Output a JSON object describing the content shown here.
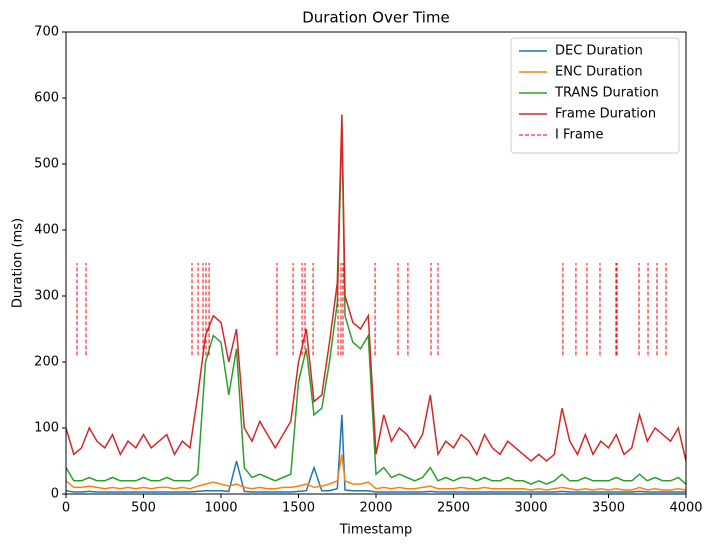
{
  "chart_data": {
    "type": "line",
    "title": "Duration Over Time",
    "x_label": "Timestamp",
    "y_label": "Duration (ms)",
    "xlim": [
      0,
      4000
    ],
    "xticks": [
      0,
      500,
      1000,
      1500,
      2000,
      2500,
      3000,
      3500,
      4000
    ],
    "ylim": [
      0,
      700
    ],
    "yticks": [
      0,
      100,
      200,
      300,
      400,
      500,
      600,
      700
    ],
    "grid": false,
    "legend": "upper right",
    "x": [
      0,
      50,
      100,
      150,
      200,
      250,
      300,
      350,
      400,
      450,
      500,
      550,
      600,
      650,
      700,
      750,
      800,
      850,
      900,
      950,
      1000,
      1050,
      1100,
      1150,
      1200,
      1250,
      1300,
      1350,
      1400,
      1450,
      1500,
      1550,
      1600,
      1650,
      1700,
      1750,
      1780,
      1800,
      1850,
      1900,
      1950,
      2000,
      2050,
      2100,
      2150,
      2200,
      2250,
      2300,
      2350,
      2400,
      2450,
      2500,
      2550,
      2600,
      2650,
      2700,
      2750,
      2800,
      2850,
      2900,
      2950,
      3000,
      3050,
      3100,
      3150,
      3200,
      3250,
      3300,
      3350,
      3400,
      3450,
      3500,
      3550,
      3600,
      3650,
      3700,
      3750,
      3800,
      3850,
      3900,
      3950,
      4000
    ],
    "series": [
      {
        "name": "DEC Duration",
        "color": "#1f77b4",
        "values": [
          5,
          3,
          3,
          4,
          3,
          3,
          3,
          3,
          3,
          3,
          3,
          3,
          3,
          3,
          3,
          3,
          3,
          4,
          5,
          5,
          5,
          4,
          50,
          4,
          3,
          3,
          3,
          3,
          3,
          3,
          4,
          5,
          40,
          5,
          5,
          8,
          120,
          6,
          5,
          5,
          5,
          3,
          3,
          3,
          3,
          3,
          3,
          3,
          4,
          3,
          3,
          3,
          3,
          3,
          3,
          3,
          3,
          3,
          3,
          3,
          3,
          3,
          3,
          3,
          3,
          4,
          3,
          3,
          3,
          3,
          3,
          3,
          3,
          3,
          3,
          4,
          3,
          3,
          3,
          3,
          3,
          3
        ]
      },
      {
        "name": "ENC Duration",
        "color": "#ff7f0e",
        "values": [
          20,
          10,
          10,
          12,
          10,
          8,
          10,
          8,
          10,
          8,
          10,
          8,
          10,
          10,
          8,
          10,
          8,
          12,
          15,
          18,
          15,
          12,
          15,
          10,
          8,
          10,
          8,
          8,
          10,
          10,
          12,
          15,
          10,
          12,
          15,
          20,
          60,
          20,
          15,
          15,
          18,
          8,
          10,
          8,
          10,
          8,
          8,
          10,
          12,
          8,
          8,
          8,
          10,
          8,
          8,
          10,
          8,
          8,
          8,
          8,
          8,
          6,
          8,
          6,
          8,
          10,
          8,
          6,
          8,
          6,
          8,
          6,
          8,
          6,
          6,
          10,
          6,
          8,
          6,
          6,
          8,
          6
        ]
      },
      {
        "name": "TRANS Duration",
        "color": "#2ca02c",
        "values": [
          40,
          20,
          20,
          25,
          20,
          20,
          25,
          20,
          20,
          20,
          25,
          20,
          20,
          25,
          20,
          20,
          20,
          30,
          200,
          240,
          230,
          150,
          220,
          40,
          25,
          30,
          25,
          20,
          25,
          30,
          170,
          220,
          120,
          130,
          200,
          290,
          560,
          270,
          230,
          220,
          240,
          30,
          40,
          25,
          30,
          25,
          20,
          25,
          40,
          20,
          25,
          20,
          25,
          25,
          20,
          25,
          20,
          20,
          25,
          20,
          20,
          15,
          20,
          15,
          20,
          30,
          20,
          20,
          25,
          20,
          20,
          20,
          25,
          20,
          20,
          30,
          20,
          25,
          20,
          20,
          25,
          15
        ]
      },
      {
        "name": "Frame Duration",
        "color": "#d62728",
        "values": [
          100,
          60,
          70,
          100,
          80,
          70,
          90,
          60,
          80,
          70,
          90,
          70,
          80,
          90,
          60,
          80,
          70,
          150,
          240,
          270,
          260,
          200,
          250,
          100,
          80,
          110,
          90,
          70,
          90,
          110,
          200,
          250,
          140,
          150,
          230,
          320,
          575,
          300,
          260,
          250,
          270,
          60,
          120,
          80,
          100,
          90,
          70,
          90,
          150,
          60,
          80,
          70,
          90,
          80,
          60,
          90,
          70,
          60,
          80,
          70,
          60,
          50,
          60,
          50,
          60,
          130,
          80,
          60,
          90,
          60,
          80,
          70,
          90,
          60,
          70,
          120,
          80,
          100,
          90,
          80,
          100,
          50
        ]
      }
    ],
    "markers": {
      "name": "I Frame",
      "color": "#ff0000",
      "style": "dashed",
      "ymin": 210,
      "ymax": 350,
      "x": [
        71,
        129,
        813,
        852,
        884,
        903,
        923,
        1361,
        1465,
        1523,
        1542,
        1594,
        1755,
        1774,
        1787,
        1994,
        2142,
        2206,
        2355,
        2400,
        3206,
        3290,
        3361,
        3445,
        3548,
        3555,
        3697,
        3755,
        3813,
        3871,
        4000
      ]
    }
  }
}
